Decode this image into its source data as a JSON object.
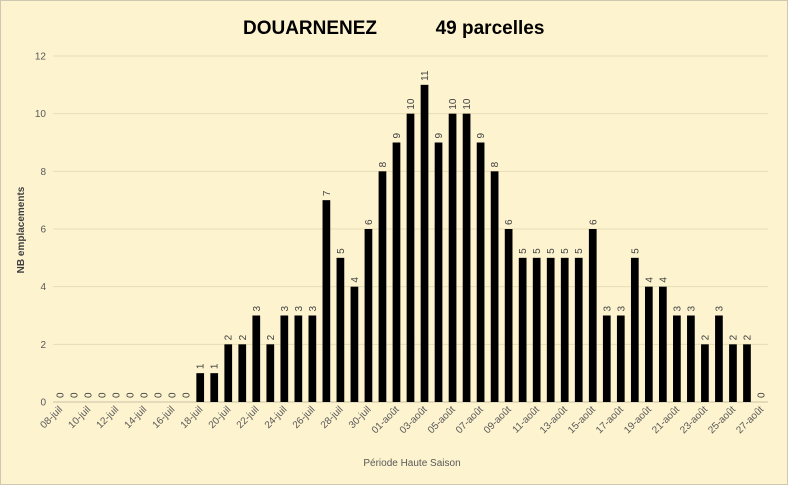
{
  "chart_data": {
    "type": "bar",
    "title_left": "DOUARNENEZ",
    "title_right": "49 parcelles",
    "xlabel": "Période Haute Saison",
    "ylabel": "NB emplacements",
    "ylim": [
      0,
      12
    ],
    "yticks": [
      0,
      2,
      4,
      6,
      8,
      10,
      12
    ],
    "grid": true,
    "legend": "none",
    "bar_color": "#000000",
    "grid_color": "#e6dcb4",
    "categories": [
      "08-juil",
      "09-juil",
      "10-juil",
      "11-juil",
      "12-juil",
      "13-juil",
      "14-juil",
      "15-juil",
      "16-juil",
      "17-juil",
      "18-juil",
      "19-juil",
      "20-juil",
      "21-juil",
      "22-juil",
      "23-juil",
      "24-juil",
      "25-juil",
      "26-juil",
      "27-juil",
      "28-juil",
      "29-juil",
      "30-juil",
      "31-juil",
      "01-août",
      "02-août",
      "03-août",
      "04-août",
      "05-août",
      "06-août",
      "07-août",
      "08-août",
      "09-août",
      "10-août",
      "11-août",
      "12-août",
      "13-août",
      "14-août",
      "15-août",
      "16-août",
      "17-août",
      "18-août",
      "19-août",
      "20-août",
      "21-août",
      "22-août",
      "23-août",
      "24-août",
      "25-août",
      "26-août",
      "27-août"
    ],
    "values": [
      0,
      0,
      0,
      0,
      0,
      0,
      0,
      0,
      0,
      0,
      1,
      1,
      2,
      2,
      3,
      2,
      3,
      3,
      3,
      7,
      5,
      4,
      6,
      8,
      9,
      10,
      11,
      9,
      10,
      10,
      9,
      8,
      6,
      5,
      5,
      5,
      5,
      5,
      6,
      3,
      3,
      5,
      4,
      4,
      3,
      3,
      2,
      3,
      2,
      2,
      0
    ],
    "shown_tick_labels": [
      "08-juil",
      "10-juil",
      "12-juil",
      "14-juil",
      "16-juil",
      "18-juil",
      "20-juil",
      "22-juil",
      "24-juil",
      "26-juil",
      "28-juil",
      "30-juil",
      "01-août",
      "03-août",
      "05-août",
      "07-août",
      "09-août",
      "11-août",
      "13-août",
      "15-août",
      "17-août",
      "19-août",
      "21-août",
      "23-août",
      "25-août",
      "27-août"
    ]
  }
}
